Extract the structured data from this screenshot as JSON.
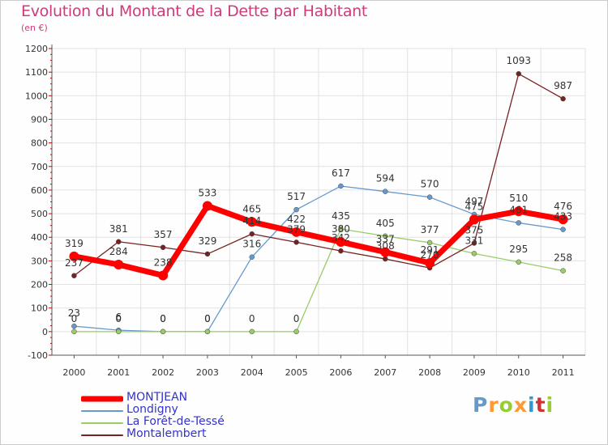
{
  "title": "Evolution du Montant de la Dette par Habitant",
  "subtitle": "(en €)",
  "brand": "Proxiti",
  "brand_colors": [
    "#6699cc",
    "#ff9933",
    "#99cc33",
    "#ff9933",
    "#3399cc",
    "#cc3333",
    "#99cc33"
  ],
  "chart_data": {
    "type": "line",
    "title": "Evolution du Montant de la Dette par Habitant",
    "ylabel": "(en €)",
    "xlabel": "",
    "ylim": [
      -100,
      1200
    ],
    "yticks": [
      -100,
      0,
      100,
      200,
      300,
      400,
      500,
      600,
      700,
      800,
      900,
      1000,
      1100,
      1200
    ],
    "categories": [
      "2000",
      "2001",
      "2002",
      "2003",
      "2004",
      "2005",
      "2006",
      "2007",
      "2008",
      "2009",
      "2010",
      "2011"
    ],
    "series": [
      {
        "name": "MONTJEAN",
        "color": "#ff0000",
        "values": [
          319,
          284,
          238,
          533,
          465,
          422,
          380,
          337,
          291,
          475,
          510,
          476
        ]
      },
      {
        "name": "Londigny",
        "color": "#6699cc",
        "values": [
          23,
          6,
          0,
          0,
          316,
          517,
          617,
          594,
          570,
          497,
          461,
          433
        ]
      },
      {
        "name": "La Forêt-de-Tessé",
        "color": "#99cc66",
        "values": [
          0,
          0,
          0,
          0,
          0,
          0,
          435,
          405,
          377,
          331,
          295,
          258
        ]
      },
      {
        "name": "Montalembert",
        "color": "#772222",
        "values": [
          237,
          381,
          357,
          329,
          414,
          379,
          342,
          308,
          270,
          375,
          1093,
          987
        ]
      }
    ],
    "labels": [
      [
        "319",
        "284",
        "238",
        "533",
        "465",
        "422",
        "380",
        "337",
        "291",
        "475",
        "510",
        "476"
      ],
      [
        "23",
        "6",
        "0",
        "0",
        "316",
        "517",
        "617",
        "594",
        "570",
        "497",
        "461",
        "433"
      ],
      [
        "0",
        "0",
        "0",
        "0",
        "0",
        "0",
        "435",
        "405",
        "377",
        "331",
        "295",
        "258"
      ],
      [
        "237",
        "381",
        "357",
        "329",
        "414",
        "379",
        "342",
        "308",
        "270",
        "375",
        "1093",
        "987"
      ]
    ]
  }
}
